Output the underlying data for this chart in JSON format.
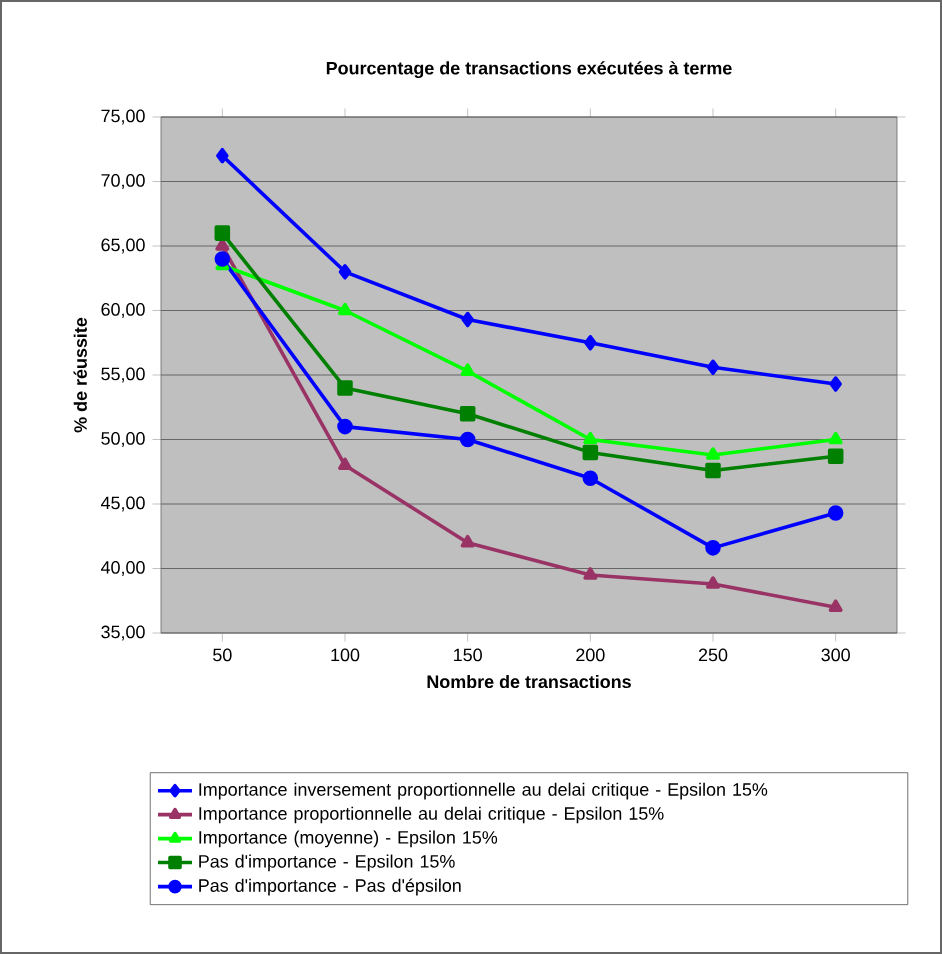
{
  "chart_data": {
    "type": "line",
    "title": "Pourcentage de transactions exécutées à terme",
    "xlabel": "Nombre de transactions",
    "ylabel": "% de réussite",
    "categories": [
      "50",
      "100",
      "150",
      "200",
      "250",
      "300"
    ],
    "ylim": [
      35,
      75
    ],
    "yticks": [
      {
        "value": 35,
        "label": "35,00"
      },
      {
        "value": 40,
        "label": "40,00"
      },
      {
        "value": 45,
        "label": "45,00"
      },
      {
        "value": 50,
        "label": "50,00"
      },
      {
        "value": 55,
        "label": "55,00"
      },
      {
        "value": 60,
        "label": "60,00"
      },
      {
        "value": 65,
        "label": "65,00"
      },
      {
        "value": 70,
        "label": "70,00"
      },
      {
        "value": 75,
        "label": "75,00"
      }
    ],
    "grid": "y",
    "legend": "bottom",
    "line_style": "solid",
    "series": [
      {
        "name": "Importance inversement proportionnelle au delai critique - Epsilon 15%",
        "color": "#0000ff",
        "marker": "diamond",
        "values": [
          72,
          63,
          59.3,
          57.5,
          55.6,
          54.3
        ]
      },
      {
        "name": "Importance proportionnelle au delai critique  - Epsilon 15%",
        "color": "#993366",
        "marker": "triangle",
        "values": [
          65,
          48,
          42,
          39.5,
          38.8,
          37
        ]
      },
      {
        "name": "Importance (moyenne) - Epsilon 15%",
        "color": "#00ff00",
        "marker": "triangle",
        "values": [
          63.5,
          60,
          55.3,
          50,
          48.8,
          50
        ]
      },
      {
        "name": "Pas d'importance - Epsilon 15%",
        "color": "#008000",
        "marker": "square",
        "values": [
          66,
          54,
          52,
          49,
          47.6,
          48.7
        ]
      },
      {
        "name": "Pas d'importance - Pas d'épsilon",
        "color": "#0000ff",
        "marker": "circle",
        "values": [
          64,
          51,
          50,
          47,
          41.6,
          44.3
        ]
      }
    ]
  }
}
